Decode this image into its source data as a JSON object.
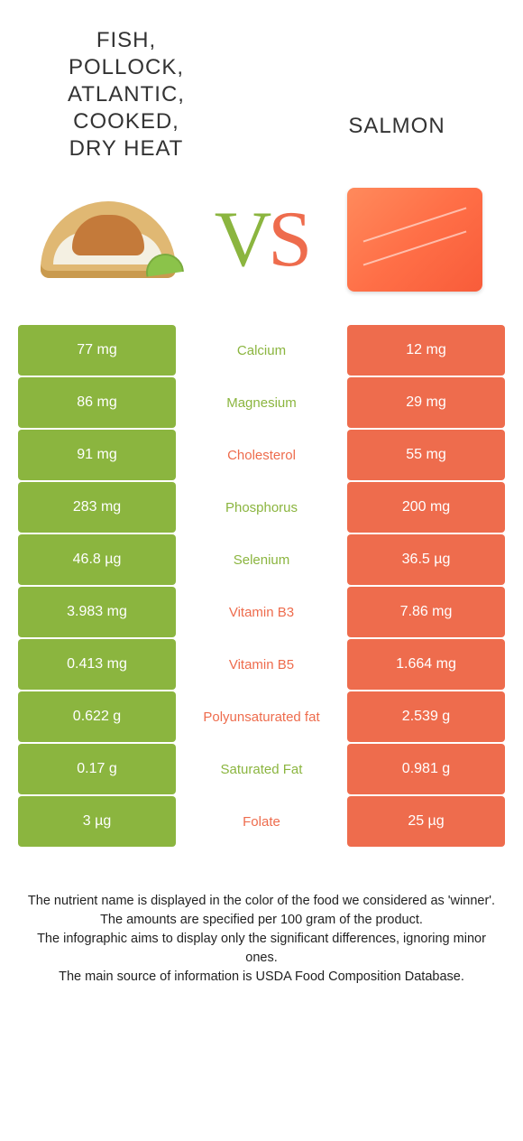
{
  "colors": {
    "left": "#8bb53f",
    "right": "#ee6c4d",
    "background": "#ffffff"
  },
  "header": {
    "left_title": "FISH,\nPOLLOCK,\nATLANTIC,\nCOOKED,\nDRY HEAT",
    "right_title": "SALMON",
    "vs_v": "V",
    "vs_s": "S"
  },
  "rows": [
    {
      "left": "77 mg",
      "label": "Calcium",
      "right": "12 mg",
      "winner": "left"
    },
    {
      "left": "86 mg",
      "label": "Magnesium",
      "right": "29 mg",
      "winner": "left"
    },
    {
      "left": "91 mg",
      "label": "Cholesterol",
      "right": "55 mg",
      "winner": "right"
    },
    {
      "left": "283 mg",
      "label": "Phosphorus",
      "right": "200 mg",
      "winner": "left"
    },
    {
      "left": "46.8 µg",
      "label": "Selenium",
      "right": "36.5 µg",
      "winner": "left"
    },
    {
      "left": "3.983 mg",
      "label": "Vitamin B3",
      "right": "7.86 mg",
      "winner": "right"
    },
    {
      "left": "0.413 mg",
      "label": "Vitamin B5",
      "right": "1.664 mg",
      "winner": "right"
    },
    {
      "left": "0.622 g",
      "label": "Polyunsaturated fat",
      "right": "2.539 g",
      "winner": "right"
    },
    {
      "left": "0.17 g",
      "label": "Saturated Fat",
      "right": "0.981 g",
      "winner": "left"
    },
    {
      "left": "3 µg",
      "label": "Folate",
      "right": "25 µg",
      "winner": "right"
    }
  ],
  "footnotes": [
    "The nutrient name is displayed in the color of the food we considered as 'winner'.",
    "The amounts are specified per 100 gram of the product.",
    "The infographic aims to display only the significant differences, ignoring minor ones.",
    "The main source of information is USDA Food Composition Database."
  ]
}
